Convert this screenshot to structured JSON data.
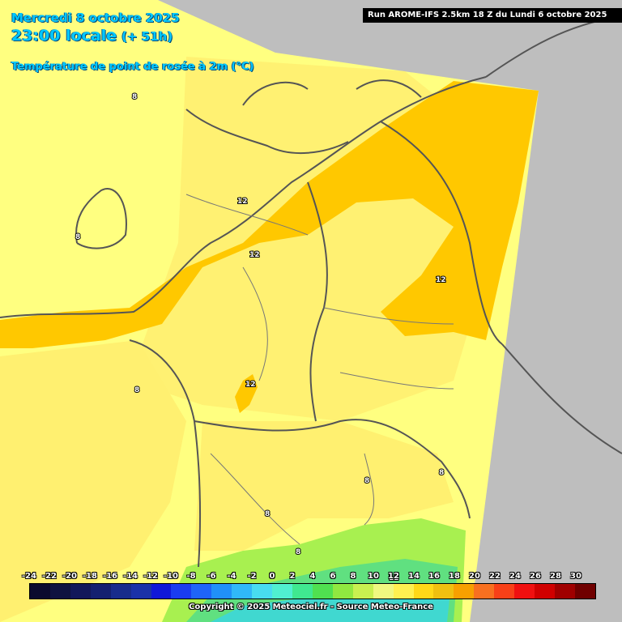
{
  "header": {
    "date": "Mercredi 8 octobre 2025",
    "time": "23:00 locale",
    "lead": "(+ 51h)",
    "parameter": "Température de point de rosée à 2m (°C)"
  },
  "run_info": "Run AROME-IFS 2.5km 18 Z du Lundi 6 octobre 2025",
  "contour_labels": [
    "8",
    "8",
    "8",
    "8",
    "8",
    "8",
    "8",
    "12",
    "12",
    "12",
    "12",
    "12"
  ],
  "legend": {
    "values": [
      "-24",
      "-22",
      "-20",
      "-18",
      "-16",
      "-14",
      "-12",
      "-10",
      "-8",
      "-6",
      "-4",
      "-2",
      "0",
      "2",
      "4",
      "6",
      "8",
      "10",
      "12",
      "14",
      "16",
      "18",
      "20",
      "22",
      "24",
      "26",
      "28",
      "30"
    ],
    "colors": [
      "#0a0a2e",
      "#0e1240",
      "#12185a",
      "#142070",
      "#182c8c",
      "#1a32a8",
      "#1018d8",
      "#1a3cf0",
      "#1e64f8",
      "#2090f8",
      "#30b8f8",
      "#48dcf0",
      "#50f0d0",
      "#40e890",
      "#50e050",
      "#90e840",
      "#c8f050",
      "#f0f880",
      "#fff050",
      "#ffd818",
      "#f0c010",
      "#f8a000",
      "#f87020",
      "#f84018",
      "#f01010",
      "#d00000",
      "#a00000",
      "#700000"
    ]
  },
  "copyright": "Copyright © 2025 Meteociel.fr - Source Meteo-France"
}
